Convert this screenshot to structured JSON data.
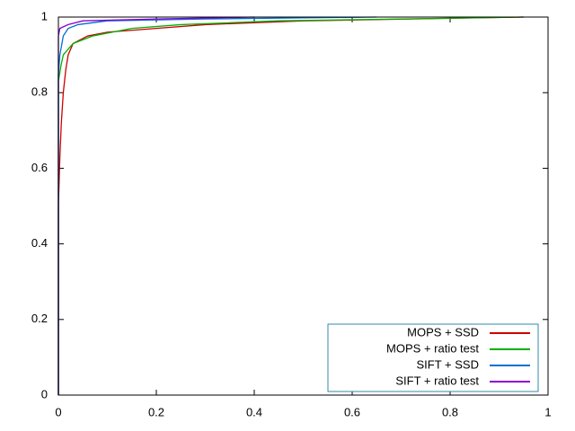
{
  "chart_data": {
    "type": "line",
    "xlim": [
      0,
      1
    ],
    "ylim": [
      0,
      1
    ],
    "xticks": [
      0,
      0.2,
      0.4,
      0.6,
      0.8,
      1
    ],
    "yticks": [
      0,
      0.2,
      0.4,
      0.6,
      0.8,
      1
    ],
    "grid": false,
    "legend": "lower right",
    "series": [
      {
        "name": "MOPS + SSD",
        "color": "#cc0000",
        "x": [
          0,
          0,
          0.003,
          0.006,
          0.01,
          0.015,
          0.02,
          0.03,
          0.06,
          0.1,
          0.2,
          0.3,
          0.5,
          0.95
        ],
        "values": [
          0,
          0.5,
          0.63,
          0.72,
          0.8,
          0.86,
          0.9,
          0.93,
          0.95,
          0.96,
          0.97,
          0.98,
          0.99,
          1
        ]
      },
      {
        "name": "MOPS + ratio test",
        "color": "#00b000",
        "x": [
          0,
          0,
          0.005,
          0.01,
          0.03,
          0.07,
          0.15,
          0.25,
          0.45,
          0.7,
          0.95
        ],
        "values": [
          0,
          0.83,
          0.87,
          0.9,
          0.93,
          0.95,
          0.97,
          0.98,
          0.99,
          0.995,
          1
        ]
      },
      {
        "name": "SIFT + SSD",
        "color": "#0070d0",
        "x": [
          0,
          0,
          0.003,
          0.01,
          0.02,
          0.04,
          0.1,
          0.3,
          0.65
        ],
        "values": [
          0,
          0.85,
          0.9,
          0.95,
          0.97,
          0.98,
          0.99,
          0.995,
          1
        ]
      },
      {
        "name": "SIFT + ratio test",
        "color": "#8a00d4",
        "x": [
          0,
          0,
          0.003,
          0.02,
          0.05,
          0.2,
          0.4
        ],
        "values": [
          0,
          0.95,
          0.97,
          0.98,
          0.99,
          0.995,
          1
        ]
      }
    ]
  }
}
